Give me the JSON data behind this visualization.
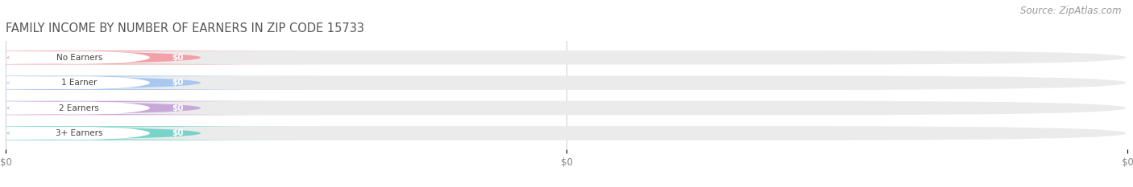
{
  "title": "FAMILY INCOME BY NUMBER OF EARNERS IN ZIP CODE 15733",
  "source": "Source: ZipAtlas.com",
  "categories": [
    "No Earners",
    "1 Earner",
    "2 Earners",
    "3+ Earners"
  ],
  "values": [
    0,
    0,
    0,
    0
  ],
  "bar_colors": [
    "#f4a0a8",
    "#a8c8f0",
    "#c8a8d8",
    "#78d4c8"
  ],
  "bar_track_color": "#ebebeb",
  "background_color": "#ffffff",
  "title_fontsize": 10.5,
  "source_fontsize": 8.5,
  "value_label": "$0",
  "xtick_labels": [
    "$0",
    "$0",
    "$0"
  ],
  "xtick_positions": [
    0.0,
    0.5,
    1.0
  ]
}
